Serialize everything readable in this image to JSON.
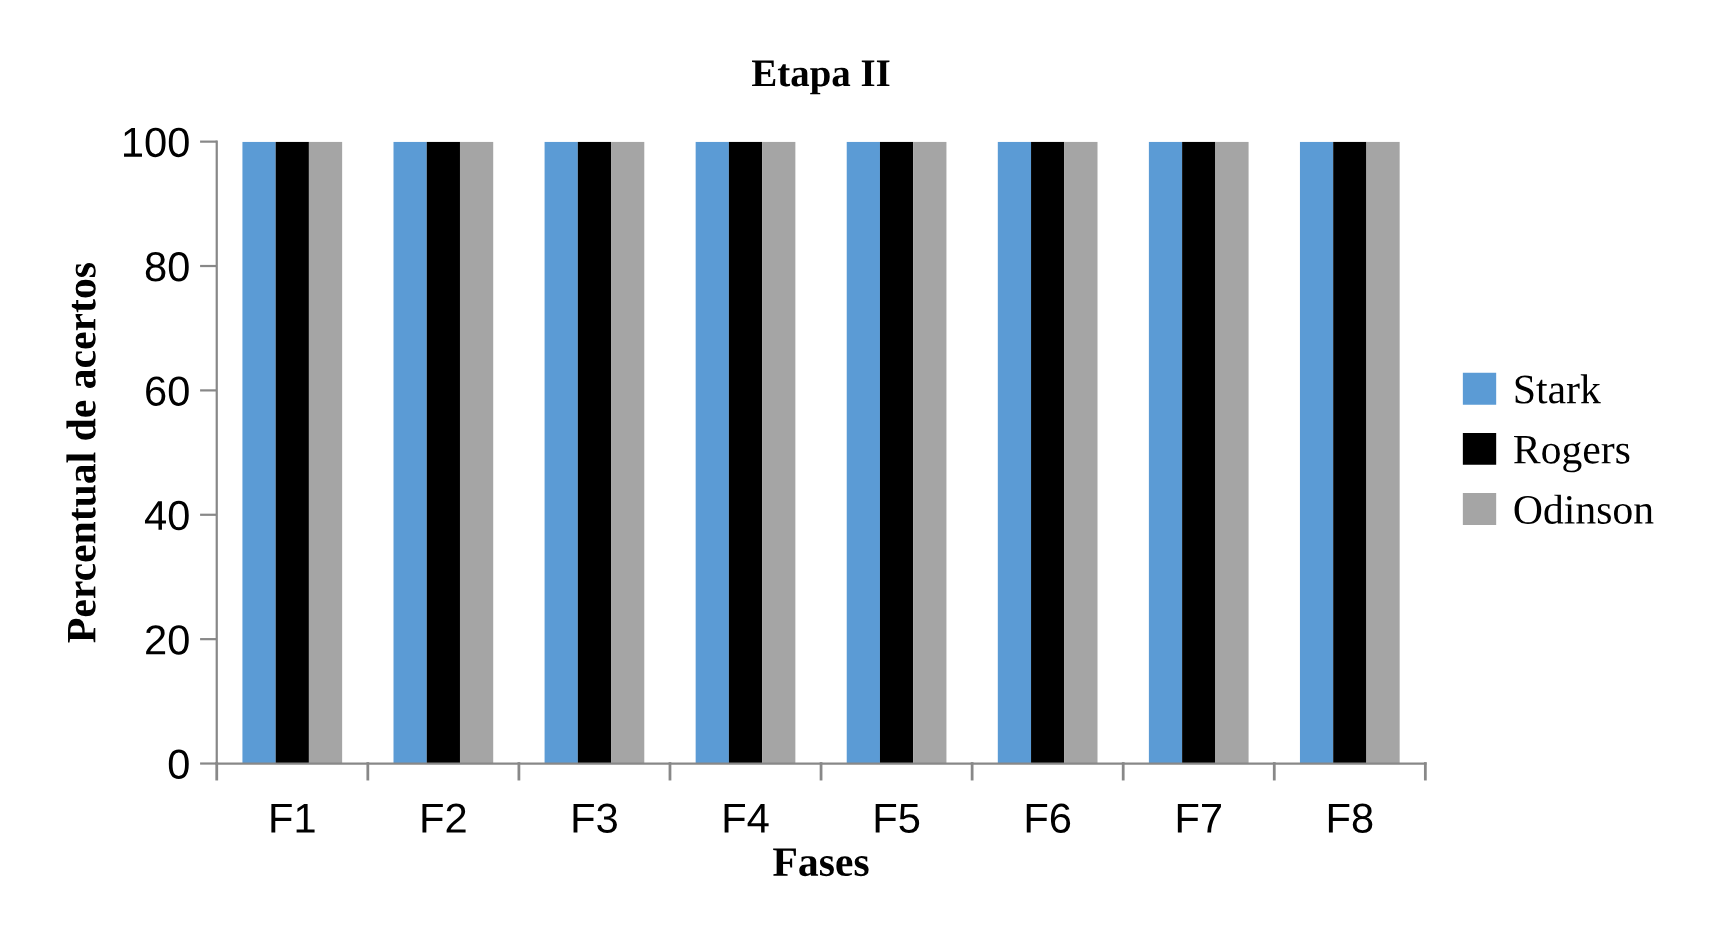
{
  "chart_data": {
    "type": "bar",
    "title": "Etapa II",
    "xlabel": "Fases",
    "ylabel": "Percentual de acertos",
    "categories": [
      "F1",
      "F2",
      "F3",
      "F4",
      "F5",
      "F6",
      "F7",
      "F8"
    ],
    "series": [
      {
        "name": "Stark",
        "color": "#5b9bd5",
        "values": [
          100,
          100,
          100,
          100,
          100,
          100,
          100,
          100
        ]
      },
      {
        "name": "Rogers",
        "color": "#000000",
        "values": [
          100,
          100,
          100,
          100,
          100,
          100,
          100,
          100
        ]
      },
      {
        "name": "Odinson",
        "color": "#a5a5a5",
        "values": [
          100,
          100,
          100,
          100,
          100,
          100,
          100,
          100
        ]
      }
    ],
    "ylim": [
      0,
      100
    ],
    "yticks": [
      0,
      20,
      40,
      60,
      80,
      100
    ],
    "grid": false,
    "legend": "right"
  }
}
